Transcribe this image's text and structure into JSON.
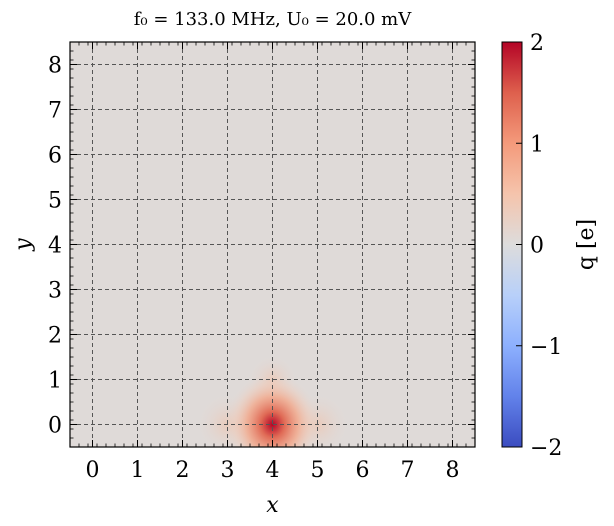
{
  "chart_data": {
    "type": "heatmap",
    "title": "f₀ = 133.0 MHz, U₀ = 20.0 mV",
    "xlabel": "x",
    "ylabel": "y",
    "xlim": [
      -0.5,
      8.5
    ],
    "ylim": [
      -0.5,
      8.5
    ],
    "x_ticks": [
      "0",
      "1",
      "2",
      "3",
      "4",
      "5",
      "6",
      "7",
      "8"
    ],
    "y_ticks": [
      "0",
      "1",
      "2",
      "3",
      "4",
      "5",
      "6",
      "7",
      "8"
    ],
    "grid": true,
    "colormap": "coolwarm",
    "colorbar": {
      "label": "q [e]",
      "range": [
        -2,
        2
      ],
      "ticks": [
        "−2",
        "−1",
        "0",
        "1",
        "2"
      ],
      "tick_values": [
        -2,
        -1,
        0,
        1,
        2
      ]
    },
    "background_value": 0.1,
    "peak": {
      "x": 4,
      "y": 0,
      "value": 2.0
    },
    "neighbors": [
      {
        "x": 3,
        "y": 0,
        "value": 0.35
      },
      {
        "x": 5,
        "y": 0,
        "value": 0.35
      },
      {
        "x": 4,
        "y": 1,
        "value": 0.25
      }
    ]
  }
}
